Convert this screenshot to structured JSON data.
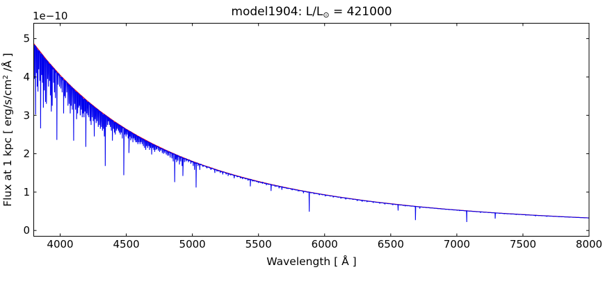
{
  "figure": {
    "title": {
      "prefix": "model1904: L/L",
      "sun_symbol": "⊙",
      "suffix": " = 421000"
    },
    "offset_text": "1e−10",
    "xlabel": "Wavelength [ Å ]",
    "ylabel": {
      "prefix": "Flux at 1 kpc [ erg/s/cm",
      "sup": "2",
      "suffix": " /Å ]"
    },
    "colors": {
      "spectrum_line": "#0000ee",
      "continuum_line": "#ff0000",
      "axis": "#000000",
      "background": "#ffffff"
    }
  },
  "chart_data": {
    "type": "line",
    "title": "model1904: L/L⊙ = 421000",
    "xlabel": "Wavelength [ Å ]",
    "ylabel": "Flux at 1 kpc [ erg/s/cm^2 /Å ]",
    "y_offset_factor": "1e-10",
    "xlim": [
      3800,
      8000
    ],
    "ylim": [
      -0.15,
      5.4
    ],
    "x_ticks": [
      4000,
      4500,
      5000,
      5500,
      6000,
      6500,
      7000,
      7500,
      8000
    ],
    "y_ticks": [
      0,
      1,
      2,
      3,
      4,
      5
    ],
    "grid": false,
    "legend": "none",
    "series": [
      {
        "name": "continuum-fit",
        "color": "#ff0000",
        "x": [
          3800,
          3900,
          4000,
          4100,
          4200,
          4300,
          4400,
          4500,
          4600,
          4700,
          4800,
          4900,
          5000,
          5100,
          5200,
          5300,
          5400,
          5500,
          5600,
          5700,
          5800,
          5900,
          6000,
          6100,
          6200,
          6300,
          6400,
          6500,
          6600,
          6700,
          6800,
          6900,
          7000,
          7100,
          7200,
          7300,
          7400,
          7500,
          7600,
          7700,
          7800,
          7900,
          8000
        ],
        "y": [
          4.87,
          4.433,
          4.044,
          3.699,
          3.39,
          3.113,
          2.864,
          2.64,
          2.439,
          2.256,
          2.091,
          1.94,
          1.803,
          1.679,
          1.565,
          1.461,
          1.365,
          1.277,
          1.197,
          1.122,
          1.054,
          0.991,
          0.932,
          0.878,
          0.828,
          0.781,
          0.738,
          0.698,
          0.66,
          0.625,
          0.593,
          0.562,
          0.534,
          0.507,
          0.482,
          0.458,
          0.436,
          0.416,
          0.396,
          0.378,
          0.36,
          0.344,
          0.329
        ]
      },
      {
        "name": "spectrum",
        "color": "#0000ee",
        "baseline": "continuum-fit",
        "absorption_lines": [
          [
            3805,
            3.95
          ],
          [
            3814,
            3.02
          ],
          [
            3820,
            4.1
          ],
          [
            3827,
            3.75
          ],
          [
            3832,
            3.62
          ],
          [
            3838,
            4.2
          ],
          [
            3846,
            3.9
          ],
          [
            3852,
            2.66
          ],
          [
            3860,
            4.05
          ],
          [
            3866,
            3.85
          ],
          [
            3873,
            3.2
          ],
          [
            3880,
            3.65
          ],
          [
            3889,
            3.35
          ],
          [
            3896,
            3.3
          ],
          [
            3905,
            3.95
          ],
          [
            3912,
            3.75
          ],
          [
            3920,
            3.9
          ],
          [
            3926,
            3.52
          ],
          [
            3933,
            3.1
          ],
          [
            3940,
            3.25
          ],
          [
            3950,
            3.85
          ],
          [
            3957,
            3.6
          ],
          [
            3964,
            3.45
          ],
          [
            3975,
            2.36
          ],
          [
            3984,
            3.8
          ],
          [
            3995,
            3.75
          ],
          [
            4005,
            3.7
          ],
          [
            4015,
            3.6
          ],
          [
            4026,
            3.05
          ],
          [
            4033,
            3.5
          ],
          [
            4040,
            3.45
          ],
          [
            4050,
            3.6
          ],
          [
            4059,
            3.25
          ],
          [
            4068,
            3.3
          ],
          [
            4076,
            3.05
          ],
          [
            4083,
            3.25
          ],
          [
            4092,
            3.15
          ],
          [
            4102,
            2.34
          ],
          [
            4110,
            3.3
          ],
          [
            4116,
            3.15
          ],
          [
            4124,
            2.9
          ],
          [
            4132,
            3.05
          ],
          [
            4139,
            3.2
          ],
          [
            4145,
            3.25
          ],
          [
            4152,
            3.0
          ],
          [
            4160,
            3.15
          ],
          [
            4167,
            2.95
          ],
          [
            4173,
            3.05
          ],
          [
            4180,
            2.95
          ],
          [
            4187,
            3.1
          ],
          [
            4194,
            2.18
          ],
          [
            4202,
            3.05
          ],
          [
            4210,
            3.0
          ],
          [
            4217,
            2.95
          ],
          [
            4227,
            2.85
          ],
          [
            4234,
            2.75
          ],
          [
            4242,
            2.95
          ],
          [
            4250,
            2.85
          ],
          [
            4258,
            2.45
          ],
          [
            4265,
            2.9
          ],
          [
            4272,
            2.8
          ],
          [
            4280,
            2.85
          ],
          [
            4288,
            2.7
          ],
          [
            4296,
            2.75
          ],
          [
            4304,
            2.65
          ],
          [
            4312,
            2.7
          ],
          [
            4320,
            2.6
          ],
          [
            4327,
            2.65
          ],
          [
            4334,
            2.45
          ],
          [
            4341,
            1.68
          ],
          [
            4350,
            2.7
          ],
          [
            4358,
            2.75
          ],
          [
            4365,
            2.85
          ],
          [
            4372,
            2.75
          ],
          [
            4380,
            2.7
          ],
          [
            4387,
            2.6
          ],
          [
            4395,
            2.34
          ],
          [
            4404,
            2.65
          ],
          [
            4411,
            2.55
          ],
          [
            4417,
            2.5
          ],
          [
            4425,
            2.6
          ],
          [
            4432,
            2.65
          ],
          [
            4440,
            2.6
          ],
          [
            4447,
            2.55
          ],
          [
            4455,
            2.5
          ],
          [
            4462,
            2.55
          ],
          [
            4470,
            2.4
          ],
          [
            4481,
            1.44
          ],
          [
            4490,
            2.5
          ],
          [
            4498,
            2.45
          ],
          [
            4506,
            2.5
          ],
          [
            4514,
            2.4
          ],
          [
            4520,
            2.02
          ],
          [
            4528,
            2.45
          ],
          [
            4534,
            2.35
          ],
          [
            4542,
            2.4
          ],
          [
            4550,
            2.3
          ],
          [
            4558,
            2.4
          ],
          [
            4565,
            2.35
          ],
          [
            4572,
            2.3
          ],
          [
            4580,
            2.3
          ],
          [
            4588,
            2.25
          ],
          [
            4596,
            2.3
          ],
          [
            4604,
            2.25
          ],
          [
            4612,
            2.3
          ],
          [
            4620,
            2.25
          ],
          [
            4629,
            2.2
          ],
          [
            4638,
            2.15
          ],
          [
            4647,
            2.1
          ],
          [
            4654,
            2.2
          ],
          [
            4662,
            2.15
          ],
          [
            4670,
            2.2
          ],
          [
            4676,
            2.1
          ],
          [
            4684,
            2.15
          ],
          [
            4692,
            1.98
          ],
          [
            4700,
            2.15
          ],
          [
            4708,
            2.1
          ],
          [
            4715,
            2.05
          ],
          [
            4724,
            2.1
          ],
          [
            4732,
            2.12
          ],
          [
            4742,
            2.08
          ],
          [
            4752,
            2.05
          ],
          [
            4762,
            2.08
          ],
          [
            4772,
            2.02
          ],
          [
            4782,
            2.0
          ],
          [
            4792,
            2.02
          ],
          [
            4802,
            1.98
          ],
          [
            4812,
            1.95
          ],
          [
            4822,
            1.95
          ],
          [
            4832,
            1.9
          ],
          [
            4845,
            1.88
          ],
          [
            4855,
            1.8
          ],
          [
            4866,
            1.26
          ],
          [
            4874,
            1.85
          ],
          [
            4881,
            1.78
          ],
          [
            4890,
            1.82
          ],
          [
            4902,
            1.72
          ],
          [
            4912,
            1.8
          ],
          [
            4922,
            1.68
          ],
          [
            4928,
            1.42
          ],
          [
            4940,
            1.78
          ],
          [
            4952,
            1.8
          ],
          [
            4970,
            1.78
          ],
          [
            4988,
            1.74
          ],
          [
            5006,
            1.68
          ],
          [
            5016,
            1.58
          ],
          [
            5028,
            1.12
          ],
          [
            5042,
            1.68
          ],
          [
            5056,
            1.58
          ],
          [
            5080,
            1.66
          ],
          [
            5110,
            1.62
          ],
          [
            5140,
            1.58
          ],
          [
            5170,
            1.5
          ],
          [
            5185,
            1.54
          ],
          [
            5210,
            1.5
          ],
          [
            5230,
            1.46
          ],
          [
            5255,
            1.46
          ],
          [
            5270,
            1.42
          ],
          [
            5290,
            1.44
          ],
          [
            5316,
            1.36
          ],
          [
            5340,
            1.4
          ],
          [
            5363,
            1.36
          ],
          [
            5380,
            1.34
          ],
          [
            5405,
            1.34
          ],
          [
            5420,
            1.3
          ],
          [
            5438,
            1.15
          ],
          [
            5455,
            1.28
          ],
          [
            5470,
            1.28
          ],
          [
            5500,
            1.24
          ],
          [
            5530,
            1.22
          ],
          [
            5560,
            1.18
          ],
          [
            5595,
            1.03
          ],
          [
            5625,
            1.14
          ],
          [
            5655,
            1.1
          ],
          [
            5677,
            1.06
          ],
          [
            5710,
            1.1
          ],
          [
            5755,
            1.05
          ],
          [
            5800,
            1.02
          ],
          [
            5840,
            0.97
          ],
          [
            5884,
            0.49
          ],
          [
            5920,
            0.95
          ],
          [
            5960,
            0.92
          ],
          [
            6005,
            0.89
          ],
          [
            6065,
            0.86
          ],
          [
            6122,
            0.83
          ],
          [
            6160,
            0.81
          ],
          [
            6247,
            0.77
          ],
          [
            6284,
            0.75
          ],
          [
            6320,
            0.74
          ],
          [
            6370,
            0.72
          ],
          [
            6416,
            0.7
          ],
          [
            6456,
            0.68
          ],
          [
            6516,
            0.66
          ],
          [
            6556,
            0.52
          ],
          [
            6610,
            0.63
          ],
          [
            6687,
            0.27
          ],
          [
            6720,
            0.57
          ],
          [
            6830,
            0.57
          ],
          [
            7020,
            0.51
          ],
          [
            7075,
            0.22
          ],
          [
            7180,
            0.46
          ],
          [
            7290,
            0.31
          ],
          [
            7360,
            0.43
          ],
          [
            7450,
            0.41
          ],
          [
            7520,
            0.39
          ],
          [
            7595,
            0.37
          ],
          [
            7680,
            0.36
          ],
          [
            7772,
            0.35
          ],
          [
            7850,
            0.34
          ]
        ]
      }
    ]
  }
}
